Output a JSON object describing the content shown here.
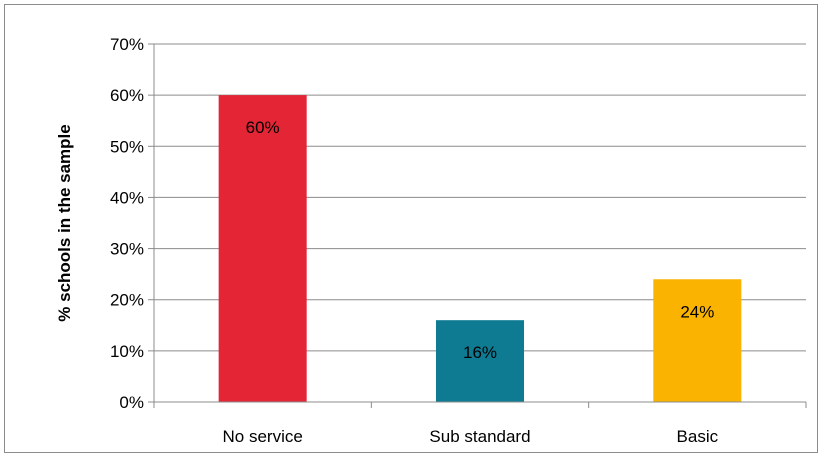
{
  "chart_data": {
    "type": "bar",
    "title": "",
    "xlabel": "",
    "ylabel": "% schools in the sample",
    "categories": [
      "No service",
      "Sub standard",
      "Basic"
    ],
    "values": [
      60,
      16,
      24
    ],
    "data_labels": [
      "60%",
      "16%",
      "24%"
    ],
    "colors": [
      "#e42535",
      "#0e7b93",
      "#f9b300"
    ],
    "ylim": [
      0,
      70
    ],
    "yticks": [
      0,
      10,
      20,
      30,
      40,
      50,
      60,
      70
    ],
    "ytick_labels": [
      "0%",
      "10%",
      "20%",
      "30%",
      "40%",
      "50%",
      "60%",
      "70%"
    ],
    "grid": true,
    "legend": "none"
  }
}
